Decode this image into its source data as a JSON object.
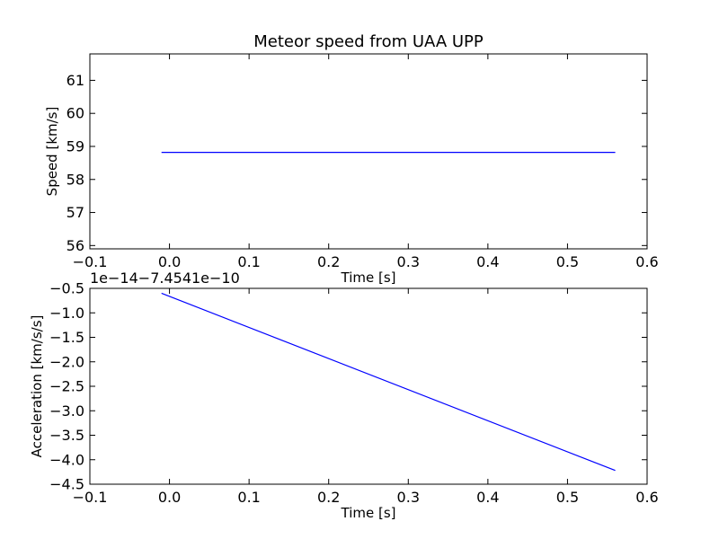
{
  "chart_data": [
    {
      "type": "line",
      "title": "Meteor speed from  UAA UPP",
      "xlabel": "Time [s]",
      "ylabel": "Speed [km/s]",
      "xlim": [
        -0.1,
        0.6
      ],
      "ylim": [
        55.9,
        61.8
      ],
      "xticks": [
        -0.1,
        0.0,
        0.1,
        0.2,
        0.3,
        0.4,
        0.5,
        0.6
      ],
      "xtick_labels": [
        "−0.1",
        "0.0",
        "0.1",
        "0.2",
        "0.3",
        "0.4",
        "0.5",
        "0.6"
      ],
      "yticks": [
        56,
        57,
        58,
        59,
        60,
        61
      ],
      "ytick_labels": [
        "56",
        "57",
        "58",
        "59",
        "60",
        "61"
      ],
      "grid": false,
      "series": [
        {
          "color": "#0000ff",
          "x": [
            -0.01,
            0.56
          ],
          "y": [
            58.82,
            58.82
          ]
        }
      ]
    },
    {
      "type": "line",
      "title": "",
      "xlabel": "Time [s]",
      "ylabel": "Acceleration [km/s/s]",
      "offset_label": "1e−14−7.4541e−10",
      "xlim": [
        -0.1,
        0.6
      ],
      "ylim": [
        -4.5,
        -0.5
      ],
      "xticks": [
        -0.1,
        0.0,
        0.1,
        0.2,
        0.3,
        0.4,
        0.5,
        0.6
      ],
      "xtick_labels": [
        "−0.1",
        "0.0",
        "0.1",
        "0.2",
        "0.3",
        "0.4",
        "0.5",
        "0.6"
      ],
      "yticks": [
        -4.5,
        -4.0,
        -3.5,
        -3.0,
        -2.5,
        -2.0,
        -1.5,
        -1.0,
        -0.5
      ],
      "ytick_labels": [
        "−4.5",
        "−4.0",
        "−3.5",
        "−3.0",
        "−2.5",
        "−2.0",
        "−1.5",
        "−1.0",
        "−0.5"
      ],
      "grid": false,
      "series": [
        {
          "color": "#0000ff",
          "x": [
            -0.01,
            0.56
          ],
          "y": [
            -0.6,
            -4.22
          ]
        }
      ]
    }
  ]
}
